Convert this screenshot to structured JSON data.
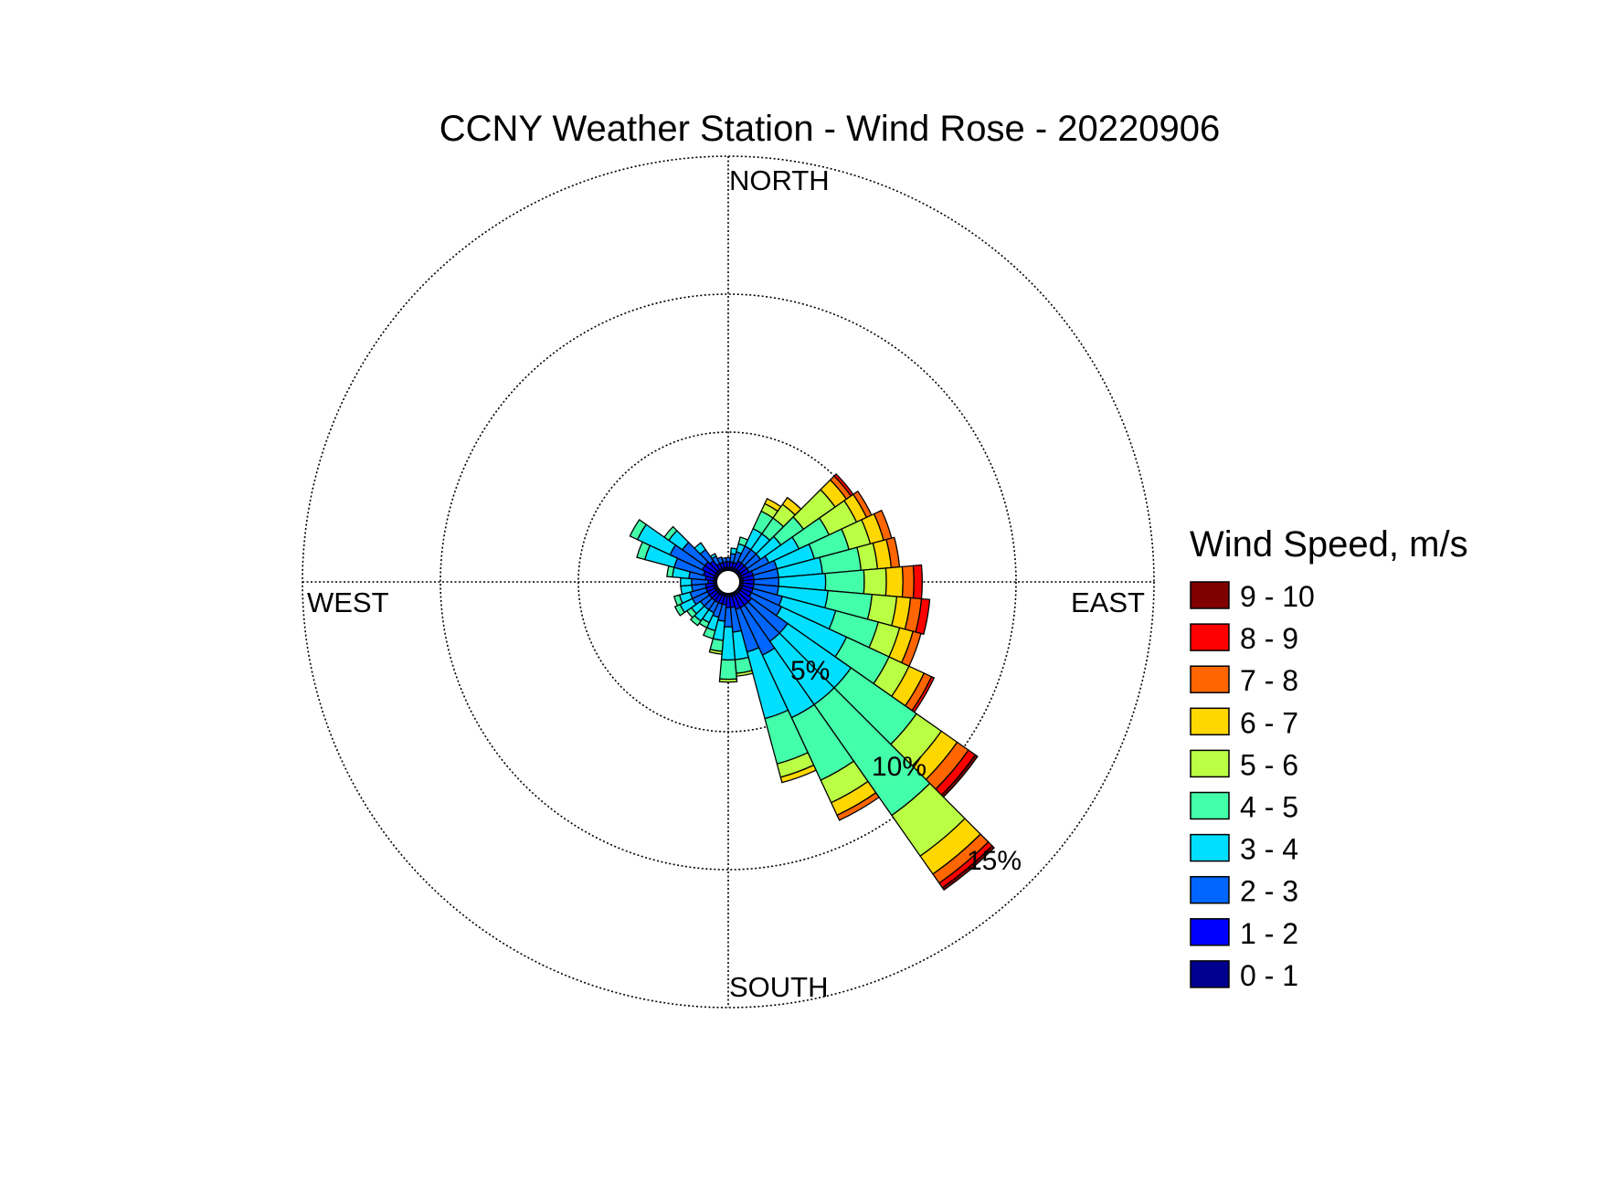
{
  "chart_data": {
    "type": "wind-rose",
    "title": "CCNY Weather Station - Wind Rose - 20220906",
    "directions": {
      "north": "NORTH",
      "east": "EAST",
      "south": "SOUTH",
      "west": "WEST"
    },
    "ring_labels": [
      "5%",
      "10%",
      "15%"
    ],
    "ring_values": [
      5,
      10,
      15
    ],
    "max_percent": 15,
    "grid": "dotted circles and crosshair",
    "legend": {
      "title": "Wind Speed, m/s",
      "position": "right",
      "bins": [
        {
          "label": "9 - 10",
          "color": "#800000"
        },
        {
          "label": "8 - 9",
          "color": "#ff0000"
        },
        {
          "label": "7 - 8",
          "color": "#ff6600"
        },
        {
          "label": "6 - 7",
          "color": "#ffd700"
        },
        {
          "label": "5 - 6",
          "color": "#bbff44"
        },
        {
          "label": "4 - 5",
          "color": "#44ffaa"
        },
        {
          "label": "3 - 4",
          "color": "#00dfff"
        },
        {
          "label": "2 - 3",
          "color": "#0066ff"
        },
        {
          "label": "1 - 2",
          "color": "#0000ff"
        },
        {
          "label": "0 - 1",
          "color": "#00008f"
        }
      ]
    },
    "sector_width_deg": 10,
    "stack_order": [
      "0 - 1",
      "1 - 2",
      "2 - 3",
      "3 - 4",
      "4 - 5",
      "5 - 6",
      "6 - 7",
      "7 - 8",
      "8 - 9",
      "9 - 10"
    ],
    "sectors": [
      {
        "direction_deg": 0,
        "cumulative_percent": [
          0.1,
          0.3,
          0.45
        ]
      },
      {
        "direction_deg": 10,
        "cumulative_percent": [
          0.1,
          0.3,
          0.6,
          0.8
        ]
      },
      {
        "direction_deg": 20,
        "cumulative_percent": [
          0.1,
          0.3,
          0.7,
          1.0,
          1.25
        ]
      },
      {
        "direction_deg": 30,
        "cumulative_percent": [
          0.1,
          0.4,
          1.0,
          1.7,
          2.4,
          2.7,
          2.9
        ]
      },
      {
        "direction_deg": 40,
        "cumulative_percent": [
          0.1,
          0.4,
          1.0,
          1.7,
          2.4,
          3.0,
          3.3
        ]
      },
      {
        "direction_deg": 50,
        "cumulative_percent": [
          0.1,
          0.4,
          1.0,
          1.9,
          2.9,
          4.3,
          4.8,
          5.0,
          5.1
        ]
      },
      {
        "direction_deg": 60,
        "cumulative_percent": [
          0.1,
          0.4,
          1.2,
          2.4,
          3.6,
          4.7,
          5.1,
          5.3
        ]
      },
      {
        "direction_deg": 70,
        "cumulative_percent": [
          0.1,
          0.5,
          1.4,
          2.8,
          4.1,
          4.9,
          5.4,
          5.7
        ]
      },
      {
        "direction_deg": 80,
        "cumulative_percent": [
          0.1,
          0.5,
          1.4,
          3.0,
          4.4,
          5.0,
          5.5,
          5.8
        ]
      },
      {
        "direction_deg": 90,
        "cumulative_percent": [
          0.1,
          0.5,
          1.4,
          3.1,
          4.5,
          5.3,
          5.9,
          6.3,
          6.6
        ]
      },
      {
        "direction_deg": 100,
        "cumulative_percent": [
          0.1,
          0.5,
          1.4,
          3.2,
          4.8,
          5.7,
          6.2,
          6.6,
          6.9
        ]
      },
      {
        "direction_deg": 110,
        "cumulative_percent": [
          0.1,
          0.5,
          1.6,
          3.6,
          5.2,
          6.0,
          6.5,
          6.8
        ]
      },
      {
        "direction_deg": 120,
        "cumulative_percent": [
          0.1,
          0.5,
          1.7,
          4.3,
          6.0,
          6.8,
          7.4,
          7.7,
          7.8
        ]
      },
      {
        "direction_deg": 130,
        "cumulative_percent": [
          0.1,
          0.6,
          2.2,
          5.0,
          7.9,
          9.0,
          9.7,
          10.2,
          10.5,
          10.6
        ]
      },
      {
        "direction_deg": 140,
        "cumulative_percent": [
          0.1,
          0.6,
          2.2,
          5.0,
          9.9,
          11.7,
          12.5,
          12.9,
          13.1,
          13.2
        ]
      },
      {
        "direction_deg": 150,
        "cumulative_percent": [
          0.1,
          0.6,
          2.5,
          5.0,
          7.5,
          8.4,
          8.9,
          9.1
        ]
      },
      {
        "direction_deg": 160,
        "cumulative_percent": [
          0.1,
          0.6,
          2.2,
          4.7,
          6.4,
          6.9,
          7.1
        ]
      },
      {
        "direction_deg": 170,
        "cumulative_percent": [
          0.1,
          0.5,
          1.4,
          2.4,
          2.9,
          3.0
        ]
      },
      {
        "direction_deg": 180,
        "cumulative_percent": [
          0.1,
          0.5,
          1.2,
          2.4,
          3.1,
          3.2
        ]
      },
      {
        "direction_deg": 190,
        "cumulative_percent": [
          0.1,
          0.4,
          1.0,
          1.7,
          2.1,
          2.2
        ]
      },
      {
        "direction_deg": 200,
        "cumulative_percent": [
          0.1,
          0.4,
          0.9,
          1.4,
          1.7
        ]
      },
      {
        "direction_deg": 210,
        "cumulative_percent": [
          0.1,
          0.4,
          0.8,
          1.2,
          1.4
        ]
      },
      {
        "direction_deg": 220,
        "cumulative_percent": [
          0.1,
          0.4,
          0.8,
          1.3,
          1.5
        ]
      },
      {
        "direction_deg": 230,
        "cumulative_percent": [
          0.1,
          0.4,
          0.8,
          1.2,
          1.4
        ]
      },
      {
        "direction_deg": 240,
        "cumulative_percent": [
          0.1,
          0.4,
          1.0,
          1.5,
          1.7
        ]
      },
      {
        "direction_deg": 250,
        "cumulative_percent": [
          0.1,
          0.4,
          1.0,
          1.4,
          1.6
        ]
      },
      {
        "direction_deg": 260,
        "cumulative_percent": [
          0.1,
          0.4,
          0.9,
          1.3
        ]
      },
      {
        "direction_deg": 270,
        "cumulative_percent": [
          0.1,
          0.3,
          0.9,
          1.3
        ]
      },
      {
        "direction_deg": 280,
        "cumulative_percent": [
          0.1,
          0.4,
          1.0,
          1.6,
          1.8
        ]
      },
      {
        "direction_deg": 290,
        "cumulative_percent": [
          0.1,
          0.5,
          1.6,
          2.7,
          3.0
        ]
      },
      {
        "direction_deg": 300,
        "cumulative_percent": [
          0.1,
          0.6,
          1.9,
          3.2,
          3.5
        ]
      },
      {
        "direction_deg": 310,
        "cumulative_percent": [
          0.1,
          0.6,
          1.6,
          2.2,
          2.4
        ]
      },
      {
        "direction_deg": 320,
        "cumulative_percent": [
          0.1,
          0.5,
          1.0,
          1.3
        ]
      },
      {
        "direction_deg": 330,
        "cumulative_percent": [
          0.1,
          0.3,
          0.6,
          0.7
        ]
      },
      {
        "direction_deg": 340,
        "cumulative_percent": [
          0.1,
          0.3,
          0.5
        ]
      },
      {
        "direction_deg": 350,
        "cumulative_percent": [
          0.1,
          0.3,
          0.45
        ]
      }
    ]
  }
}
